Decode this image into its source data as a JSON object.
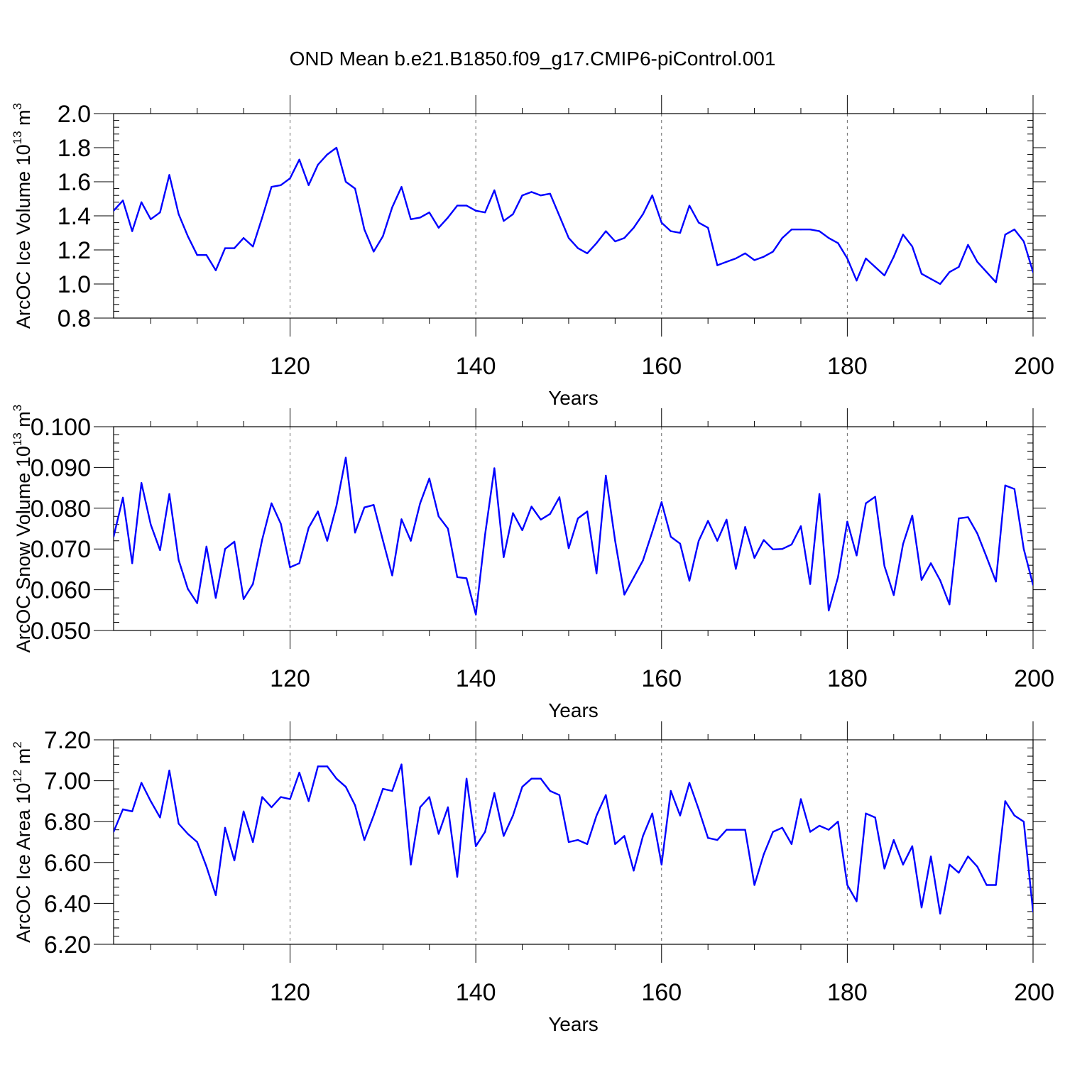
{
  "title": "OND Mean b.e21.B1850.f09_g17.CMIP6-piControl.001",
  "line_color": "#0000ff",
  "chart_data": [
    {
      "type": "line",
      "ylabel_main": "ArcOC Ice Volume 10",
      "ylabel_exp": "13",
      "ylabel_unit": " m",
      "ylabel_unit_exp": "3",
      "xlabel": "Years",
      "xlim": [
        101,
        200
      ],
      "ylim": [
        0.8,
        2.0
      ],
      "yticks": [
        0.8,
        1.0,
        1.2,
        1.4,
        1.6,
        1.8,
        2.0
      ],
      "ytick_labels": [
        "0.8",
        "1.0",
        "1.2",
        "1.4",
        "1.6",
        "1.8",
        "2.0"
      ],
      "xticks": [
        120,
        140,
        160,
        180,
        200
      ],
      "xtick_labels": [
        "120",
        "140",
        "160",
        "180",
        "200"
      ],
      "x_start": 101,
      "values": [
        1.43,
        1.49,
        1.31,
        1.48,
        1.38,
        1.42,
        1.64,
        1.41,
        1.28,
        1.17,
        1.17,
        1.08,
        1.21,
        1.21,
        1.27,
        1.22,
        1.39,
        1.57,
        1.58,
        1.62,
        1.73,
        1.58,
        1.7,
        1.76,
        1.8,
        1.6,
        1.56,
        1.32,
        1.19,
        1.28,
        1.45,
        1.57,
        1.38,
        1.39,
        1.42,
        1.33,
        1.39,
        1.46,
        1.46,
        1.43,
        1.42,
        1.55,
        1.37,
        1.41,
        1.52,
        1.54,
        1.52,
        1.53,
        1.4,
        1.27,
        1.21,
        1.18,
        1.24,
        1.31,
        1.25,
        1.27,
        1.33,
        1.41,
        1.52,
        1.36,
        1.31,
        1.3,
        1.46,
        1.36,
        1.33,
        1.11,
        1.13,
        1.15,
        1.18,
        1.14,
        1.16,
        1.19,
        1.27,
        1.32,
        1.32,
        1.32,
        1.31,
        1.27,
        1.24,
        1.15,
        1.02,
        1.15,
        1.1,
        1.05,
        1.16,
        1.29,
        1.22,
        1.06,
        1.03,
        1.0,
        1.07,
        1.1,
        1.23,
        1.13,
        1.07,
        1.01,
        1.29,
        1.32,
        1.25,
        1.07
      ]
    },
    {
      "type": "line",
      "ylabel_main": "ArcOC Snow Volume 10",
      "ylabel_exp": "13",
      "ylabel_unit": " m",
      "ylabel_unit_exp": "3",
      "xlabel": "Years",
      "xlim": [
        101,
        200
      ],
      "ylim": [
        0.05,
        0.1
      ],
      "yticks": [
        0.05,
        0.06,
        0.07,
        0.08,
        0.09,
        0.1
      ],
      "ytick_labels": [
        "0.050",
        "0.060",
        "0.070",
        "0.080",
        "0.090",
        "0.100"
      ],
      "xticks": [
        120,
        140,
        160,
        180,
        200
      ],
      "xtick_labels": [
        "120",
        "140",
        "160",
        "180",
        "200"
      ],
      "x_start": 101,
      "values": [
        0.073,
        0.0826,
        0.0665,
        0.0862,
        0.076,
        0.0697,
        0.0835,
        0.0673,
        0.0602,
        0.0567,
        0.0706,
        0.058,
        0.07,
        0.0718,
        0.0577,
        0.0614,
        0.0723,
        0.0812,
        0.0762,
        0.0655,
        0.0665,
        0.0752,
        0.0792,
        0.072,
        0.0806,
        0.0924,
        0.074,
        0.0802,
        0.0808,
        0.0721,
        0.0635,
        0.0773,
        0.072,
        0.0812,
        0.0873,
        0.078,
        0.075,
        0.0631,
        0.0628,
        0.0539,
        0.0735,
        0.0898,
        0.068,
        0.0788,
        0.0746,
        0.0804,
        0.0772,
        0.0786,
        0.0827,
        0.0702,
        0.0775,
        0.0792,
        0.064,
        0.088,
        0.072,
        0.0588,
        0.063,
        0.0672,
        0.0742,
        0.0815,
        0.073,
        0.0713,
        0.0622,
        0.072,
        0.0769,
        0.072,
        0.0772,
        0.0651,
        0.0754,
        0.0678,
        0.0722,
        0.0699,
        0.07,
        0.0711,
        0.0756,
        0.0614,
        0.0835,
        0.0549,
        0.0631,
        0.0767,
        0.0684,
        0.0812,
        0.0828,
        0.0658,
        0.0587,
        0.0712,
        0.0782,
        0.0624,
        0.0665,
        0.0623,
        0.0564,
        0.0775,
        0.0778,
        0.0738,
        0.068,
        0.062,
        0.0856,
        0.0847,
        0.07,
        0.0612
      ]
    },
    {
      "type": "line",
      "ylabel_main": "ArcOC Ice Area 10",
      "ylabel_exp": "12",
      "ylabel_unit": " m",
      "ylabel_unit_exp": "2",
      "xlabel": "Years",
      "xlim": [
        101,
        200
      ],
      "ylim": [
        6.2,
        7.2
      ],
      "yticks": [
        6.2,
        6.4,
        6.6,
        6.8,
        7.0,
        7.2
      ],
      "ytick_labels": [
        "6.20",
        "6.40",
        "6.60",
        "6.80",
        "7.00",
        "7.20"
      ],
      "xticks": [
        120,
        140,
        160,
        180,
        200
      ],
      "xtick_labels": [
        "120",
        "140",
        "160",
        "180",
        "200"
      ],
      "x_start": 101,
      "values": [
        6.75,
        6.86,
        6.85,
        6.99,
        6.9,
        6.82,
        7.05,
        6.79,
        6.74,
        6.7,
        6.58,
        6.44,
        6.77,
        6.61,
        6.85,
        6.7,
        6.92,
        6.87,
        6.92,
        6.91,
        7.04,
        6.9,
        7.07,
        7.07,
        7.01,
        6.97,
        6.88,
        6.71,
        6.83,
        6.96,
        6.95,
        7.08,
        6.59,
        6.87,
        6.92,
        6.74,
        6.87,
        6.53,
        7.01,
        6.68,
        6.75,
        6.94,
        6.73,
        6.83,
        6.97,
        7.01,
        7.01,
        6.95,
        6.93,
        6.7,
        6.71,
        6.69,
        6.83,
        6.93,
        6.69,
        6.73,
        6.56,
        6.73,
        6.84,
        6.59,
        6.95,
        6.83,
        6.99,
        6.86,
        6.72,
        6.71,
        6.76,
        6.76,
        6.76,
        6.49,
        6.64,
        6.75,
        6.77,
        6.69,
        6.91,
        6.75,
        6.78,
        6.76,
        6.8,
        6.49,
        6.41,
        6.84,
        6.82,
        6.57,
        6.71,
        6.59,
        6.68,
        6.38,
        6.63,
        6.35,
        6.59,
        6.55,
        6.63,
        6.58,
        6.49,
        6.49,
        6.9,
        6.83,
        6.8,
        6.36
      ]
    }
  ]
}
